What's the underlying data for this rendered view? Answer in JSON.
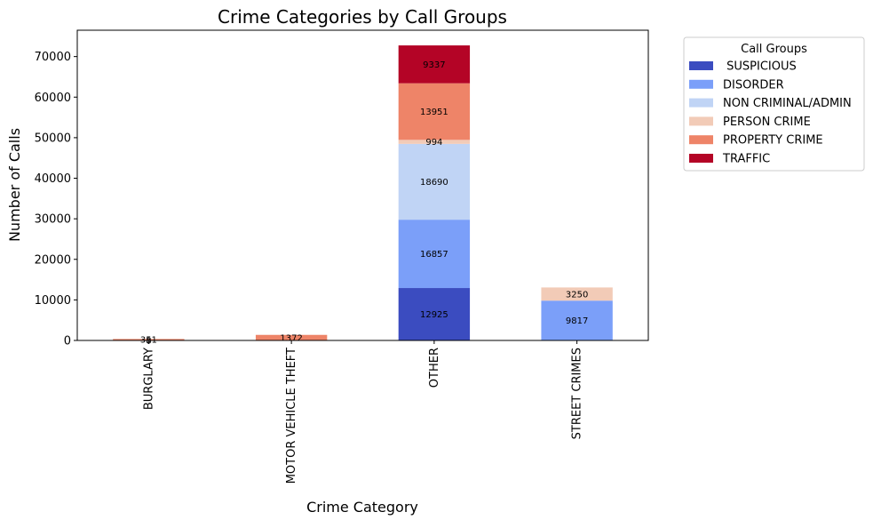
{
  "chart_data": {
    "type": "bar",
    "stacked": true,
    "title": "Crime Categories by Call Groups",
    "xlabel": "Crime Category",
    "ylabel": "Number of Calls",
    "categories": [
      "BURGLARY",
      "MOTOR VEHICLE THEFT",
      "OTHER",
      "STREET CRIMES"
    ],
    "ylim": [
      0,
      76500
    ],
    "yticks": [
      0,
      10000,
      20000,
      30000,
      40000,
      50000,
      60000,
      70000
    ],
    "ytick_labels": [
      "0",
      "10000",
      "20000",
      "30000",
      "40000",
      "50000",
      "60000",
      "70000"
    ],
    "grid": false,
    "legend": {
      "title": "Call Groups",
      "placement": "outside-top-right"
    },
    "series": [
      {
        "name": " SUSPICIOUS",
        "color": "#3b4cc0",
        "values": [
          0,
          0,
          12925,
          0
        ],
        "labels": [
          "",
          "",
          "12925",
          ""
        ]
      },
      {
        "name": "DISORDER",
        "color": "#7b9ff9",
        "values": [
          0,
          0,
          16857,
          9817
        ],
        "labels": [
          "",
          "",
          "16857",
          "9817"
        ]
      },
      {
        "name": "NON CRIMINAL/ADMIN",
        "color": "#c0d4f5",
        "values": [
          0,
          0,
          18690,
          0
        ],
        "labels": [
          "",
          "",
          "18690",
          ""
        ]
      },
      {
        "name": "PERSON CRIME",
        "color": "#f2cbb7",
        "values": [
          8,
          0,
          994,
          3250
        ],
        "labels": [
          "8",
          "",
          "994",
          "3250"
        ]
      },
      {
        "name": "PROPERTY CRIME",
        "color": "#ee8468",
        "values": [
          351,
          1372,
          13951,
          0
        ],
        "labels": [
          "351",
          "1372",
          "13951",
          ""
        ]
      },
      {
        "name": "TRAFFIC",
        "color": "#b40426",
        "values": [
          0,
          0,
          9337,
          0
        ],
        "labels": [
          "",
          "",
          "9337",
          ""
        ]
      }
    ]
  }
}
